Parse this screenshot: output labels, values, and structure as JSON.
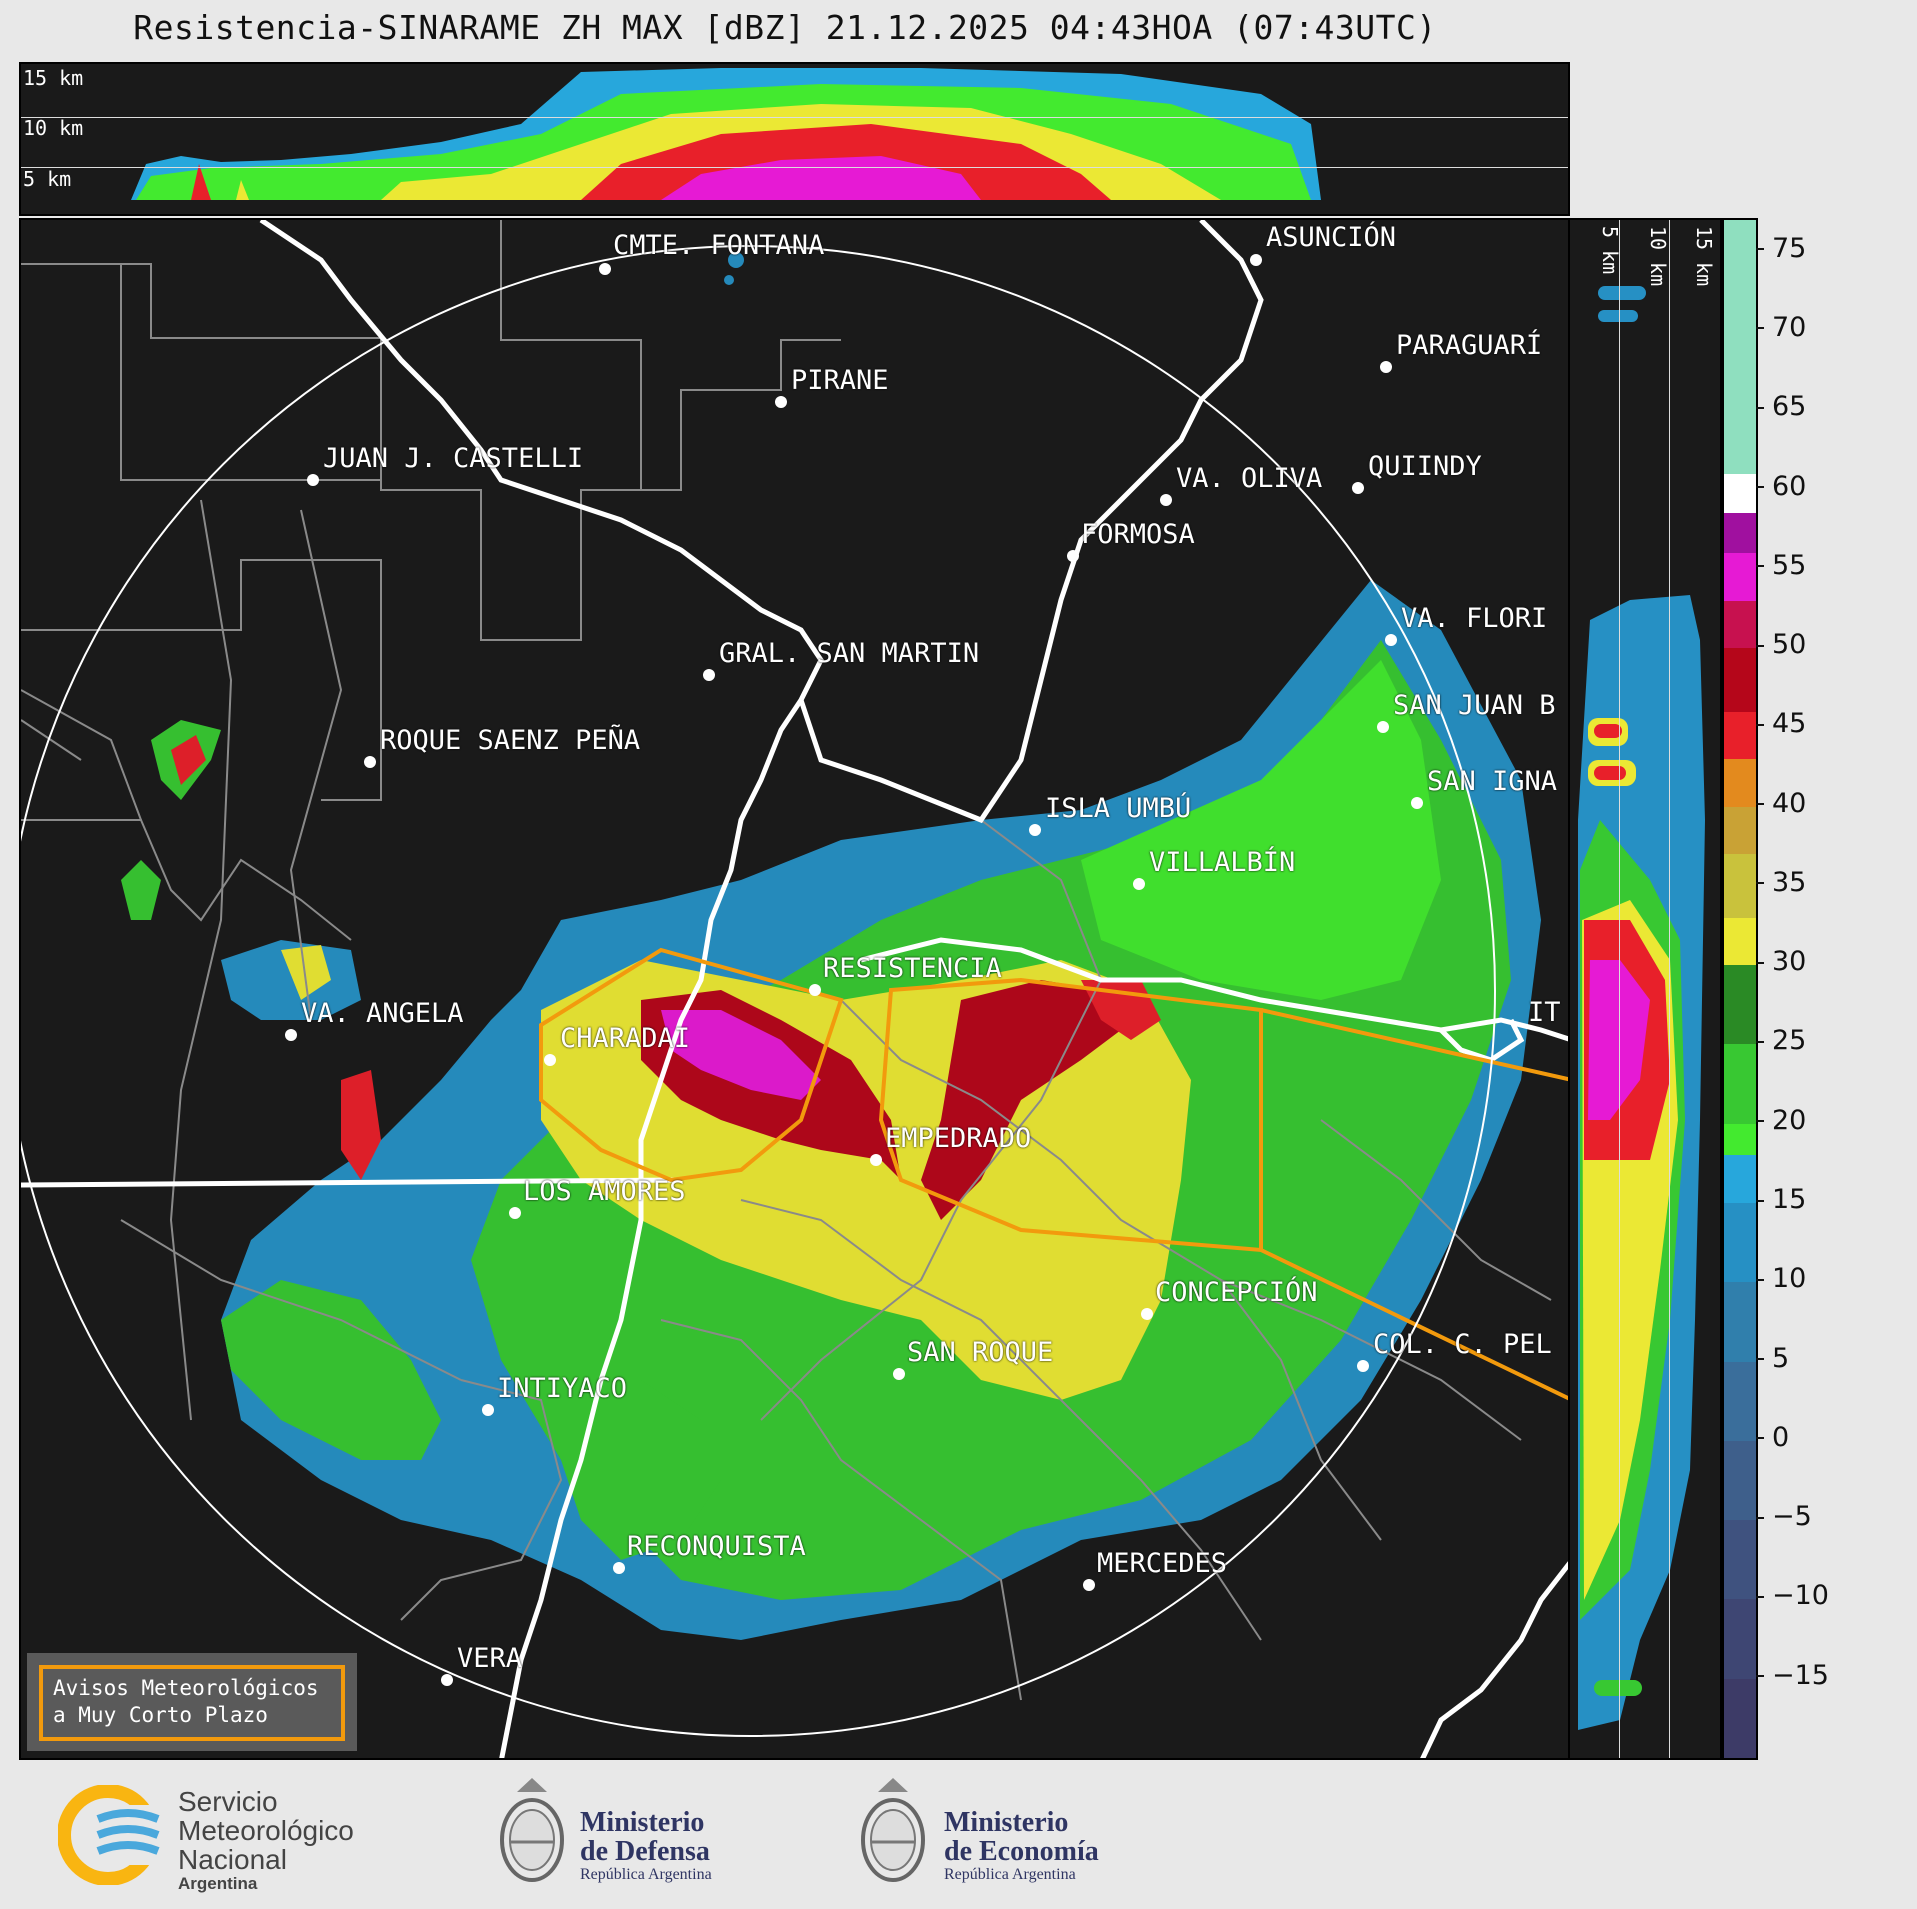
{
  "title": "Resistencia-SINARAME ZH MAX [dBZ] 21.12.2025 04:43HOA (07:43UTC)",
  "top_profile": {
    "height_labels": [
      "15 km",
      "10 km",
      "5 km"
    ]
  },
  "right_profile": {
    "height_labels": [
      "5 km",
      "10 km",
      "15 km"
    ]
  },
  "colorbar": {
    "unit": "dBZ",
    "range": [
      -20,
      77
    ],
    "ticks": [
      "75",
      "70",
      "65",
      "60",
      "55",
      "50",
      "45",
      "40",
      "35",
      "30",
      "25",
      "20",
      "15",
      "10",
      "5",
      "0",
      "−5",
      "−10",
      "−15"
    ],
    "bands": [
      {
        "from": -20,
        "to": -15,
        "color": "#3d3b67"
      },
      {
        "from": -15,
        "to": -10,
        "color": "#3e4673"
      },
      {
        "from": -10,
        "to": -5,
        "color": "#3f527f"
      },
      {
        "from": -5,
        "to": 0,
        "color": "#3e5f8b"
      },
      {
        "from": 0,
        "to": 5,
        "color": "#3a6e9b"
      },
      {
        "from": 5,
        "to": 10,
        "color": "#307fac"
      },
      {
        "from": 10,
        "to": 15,
        "color": "#2690c4"
      },
      {
        "from": 15,
        "to": 18,
        "color": "#27a7dc"
      },
      {
        "from": 18,
        "to": 20,
        "color": "#43ea2f"
      },
      {
        "from": 20,
        "to": 25,
        "color": "#38c832"
      },
      {
        "from": 25,
        "to": 30,
        "color": "#2a8a25"
      },
      {
        "from": 30,
        "to": 33,
        "color": "#ebe834"
      },
      {
        "from": 33,
        "to": 37,
        "color": "#c9c23c"
      },
      {
        "from": 37,
        "to": 40,
        "color": "#c9a235"
      },
      {
        "from": 40,
        "to": 43,
        "color": "#e38a1e"
      },
      {
        "from": 43,
        "to": 46,
        "color": "#e8202a"
      },
      {
        "from": 46,
        "to": 50,
        "color": "#b5061a"
      },
      {
        "from": 50,
        "to": 53,
        "color": "#c7114f"
      },
      {
        "from": 53,
        "to": 56,
        "color": "#e61ad4"
      },
      {
        "from": 56,
        "to": 58.5,
        "color": "#a0109f"
      },
      {
        "from": 58.5,
        "to": 61,
        "color": "#ffffff"
      },
      {
        "from": 61,
        "to": 77,
        "color": "#8fdfbf"
      }
    ]
  },
  "cities": [
    {
      "name": "CMTE. FONTANA"
    },
    {
      "name": "ASUNCIÓN"
    },
    {
      "name": "PARAGUARÍ"
    },
    {
      "name": "PIRANE"
    },
    {
      "name": "JUAN J. CASTELLI"
    },
    {
      "name": "VA. OLIVA"
    },
    {
      "name": "QUIINDY"
    },
    {
      "name": "FORMOSA"
    },
    {
      "name": "VA. FLORI"
    },
    {
      "name": "GRAL. SAN MARTIN"
    },
    {
      "name": "SAN JUAN B"
    },
    {
      "name": "ROQUE SAENZ PEÑA"
    },
    {
      "name": "SAN IGNA"
    },
    {
      "name": "ISLA UMBÚ"
    },
    {
      "name": "VILLALBÍN"
    },
    {
      "name": "RESISTENCIA"
    },
    {
      "name": "VA. ANGELA"
    },
    {
      "name": "CHARADAI"
    },
    {
      "name": "IT"
    },
    {
      "name": "EMPEDRADO"
    },
    {
      "name": "LOS AMORES"
    },
    {
      "name": "CONCEPCIÓN"
    },
    {
      "name": "COL. C. PEL"
    },
    {
      "name": "SAN ROQUE"
    },
    {
      "name": "INTIYACO"
    },
    {
      "name": "RECONQUISTA"
    },
    {
      "name": "MERCEDES"
    },
    {
      "name": "VERA"
    }
  ],
  "notice": {
    "line1": "Avisos Meteorológicos",
    "line2": "a Muy Corto Plazo"
  },
  "footer": {
    "smn": {
      "line1": "Servicio",
      "line2": "Meteorológico",
      "line3": "Nacional",
      "line4": "Argentina"
    },
    "defensa": {
      "line1": "Ministerio",
      "line2": "de Defensa",
      "line3": "República Argentina"
    },
    "economia": {
      "line1": "Ministerio",
      "line2": "de Economía",
      "line3": "República Argentina"
    }
  }
}
